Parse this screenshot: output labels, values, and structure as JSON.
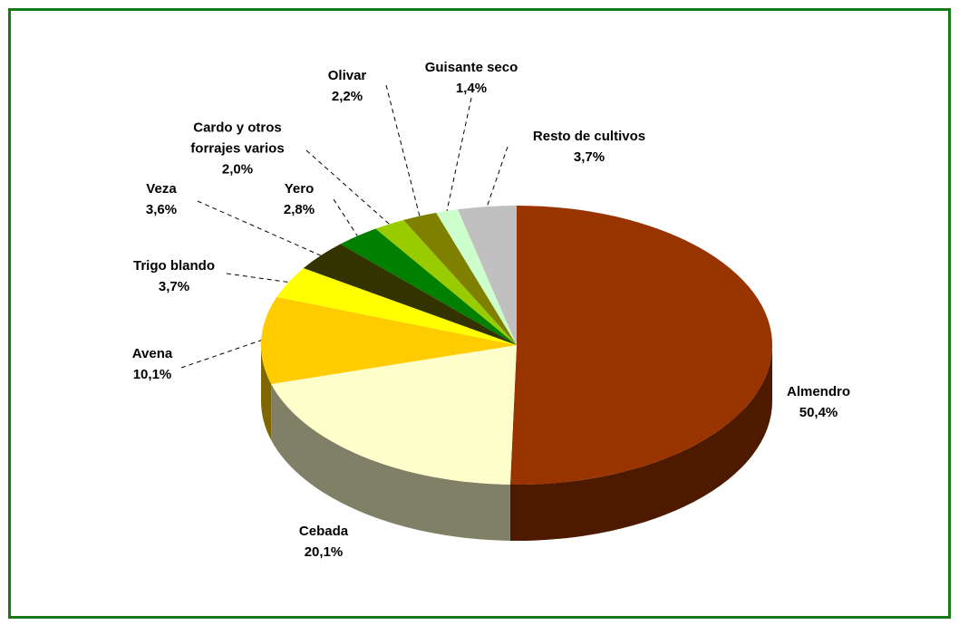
{
  "chart_data": {
    "type": "pie",
    "categories": [
      "Almendro",
      "Cebada",
      "Avena",
      "Trigo blando",
      "Veza",
      "Yero",
      "Cardo y otros forrajes varios",
      "Olivar",
      "Guisante seco",
      "Resto de cultivos"
    ],
    "values": [
      50.4,
      20.1,
      10.1,
      3.7,
      3.6,
      2.8,
      2.0,
      2.2,
      1.4,
      3.7
    ],
    "value_labels": [
      "50,4%",
      "20,1%",
      "10,1%",
      "3,7%",
      "3,6%",
      "2,8%",
      "2,0%",
      "2,2%",
      "1,4%",
      "3,7%"
    ],
    "colors": [
      "#993300",
      "#ffffcc",
      "#ffcc00",
      "#ffff00",
      "#333300",
      "#008000",
      "#99cc00",
      "#808000",
      "#ccffcc",
      "#c0c0c0"
    ]
  }
}
